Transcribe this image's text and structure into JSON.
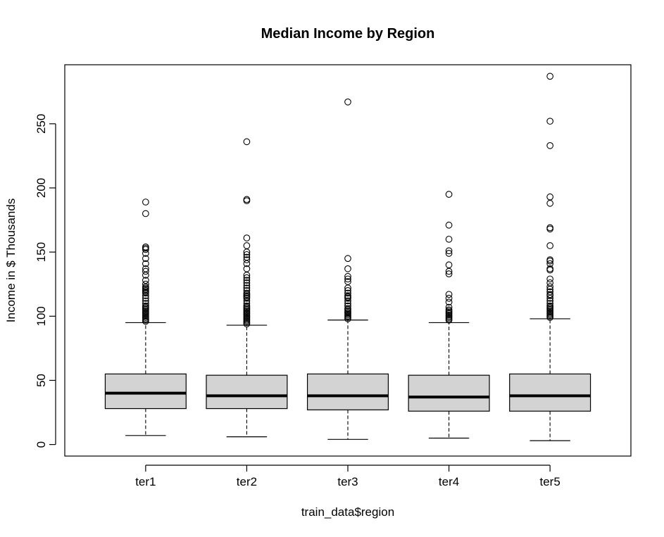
{
  "chart_data": {
    "type": "boxplot",
    "title": "Median Income by Region",
    "xlabel": "train_data$region",
    "ylabel": "Income in $ Thousands",
    "categories": [
      "ter1",
      "ter2",
      "ter3",
      "ter4",
      "ter5"
    ],
    "y_ticks": [
      0,
      50,
      100,
      150,
      200,
      250
    ],
    "y_tick_labels": [
      "0",
      "50",
      "100",
      "150",
      "200",
      "250"
    ],
    "ylim": [
      -9,
      296
    ],
    "grid": false,
    "legend": "none",
    "box_fill": "#d3d3d3",
    "series": [
      {
        "category": "ter1",
        "whisker_low": 7,
        "q1": 28,
        "median": 40,
        "q3": 55,
        "whisker_high": 95,
        "outliers": [
          96,
          97,
          98,
          99,
          100,
          101,
          102,
          103,
          104,
          105,
          106,
          107,
          108,
          110,
          112,
          114,
          116,
          118,
          119,
          120,
          121,
          122,
          123,
          125,
          128,
          132,
          135,
          137,
          141,
          145,
          149,
          152,
          153,
          154,
          180,
          189
        ]
      },
      {
        "category": "ter2",
        "whisker_low": 6,
        "q1": 28,
        "median": 38,
        "q3": 54,
        "whisker_high": 93,
        "outliers": [
          94,
          95,
          96,
          97,
          98,
          99,
          100,
          101,
          102,
          103,
          104,
          105,
          106,
          107,
          108,
          110,
          112,
          114,
          115,
          116,
          117,
          118,
          120,
          122,
          124,
          126,
          128,
          130,
          132,
          137,
          141,
          144,
          146,
          148,
          150,
          155,
          161,
          190,
          191,
          236
        ]
      },
      {
        "category": "ter3",
        "whisker_low": 4,
        "q1": 27,
        "median": 38,
        "q3": 55,
        "whisker_high": 97,
        "outliers": [
          98,
          99,
          100,
          101,
          102,
          103,
          104,
          105,
          106,
          108,
          110,
          112,
          114,
          115,
          116,
          118,
          120,
          122,
          127,
          129,
          131,
          137,
          145,
          267
        ]
      },
      {
        "category": "ter4",
        "whisker_low": 5,
        "q1": 26,
        "median": 37,
        "q3": 54,
        "whisker_high": 95,
        "outliers": [
          97,
          98,
          99,
          100,
          101,
          102,
          103,
          104,
          105,
          107,
          111,
          114,
          117,
          133,
          135,
          140,
          149,
          151,
          160,
          171,
          195
        ]
      },
      {
        "category": "ter5",
        "whisker_low": 3,
        "q1": 26,
        "median": 38,
        "q3": 55,
        "whisker_high": 98,
        "outliers": [
          99,
          100,
          101,
          102,
          103,
          104,
          105,
          106,
          107,
          108,
          110,
          112,
          114,
          116,
          117,
          119,
          121,
          123,
          126,
          129,
          136,
          137,
          141,
          143,
          144,
          155,
          168,
          169,
          188,
          193,
          233,
          252,
          287
        ]
      }
    ]
  }
}
